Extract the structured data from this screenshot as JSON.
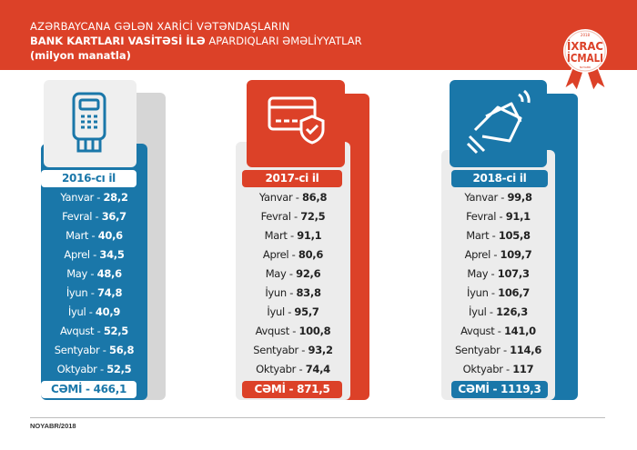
{
  "header": {
    "line1": "AZƏRBAYCANA GƏLƏN XARİCİ VƏTƏNDAŞLARIN",
    "line2_bold": "BANK KARTLARI VASİTƏSİ İLƏ",
    "line2_rest": " APARDIQLARI ƏMƏLİYYATLAR",
    "line3": "(milyon manatla)"
  },
  "badge": {
    "year": "2018",
    "line1": "İXRAC",
    "line2": "İCMALI",
    "sub": "NOYABR"
  },
  "colors": {
    "red": "#dc4128",
    "blue": "#1a77a9",
    "gray": "#ececec"
  },
  "chart_data": {
    "type": "table",
    "categories": [
      "Yanvar",
      "Fevral",
      "Mart",
      "Aprel",
      "May",
      "İyun",
      "İyul",
      "Avqust",
      "Sentyabr",
      "Oktyabr"
    ],
    "series": [
      {
        "name": "2016-cı il",
        "icon": "pos-terminal-icon",
        "values": [
          "28,2",
          "36,7",
          "40,6",
          "34,5",
          "48,6",
          "74,8",
          "40,9",
          "52,5",
          "56,8",
          "52,5"
        ],
        "total_label": "CƏMİ - 466,1"
      },
      {
        "name": "2017-ci il",
        "icon": "card-shield-icon",
        "values": [
          "86,8",
          "72,5",
          "91,1",
          "80,6",
          "92,6",
          "83,8",
          "95,7",
          "100,8",
          "93,2",
          "74,4"
        ],
        "total_label": "CƏMİ - 871,5"
      },
      {
        "name": "2018-ci il",
        "icon": "contactless-card-hand-icon",
        "values": [
          "99,8",
          "91,1",
          "105,8",
          "109,7",
          "107,3",
          "106,7",
          "126,3",
          "141,0",
          "114,6",
          "117"
        ],
        "total_label": "CƏMİ - 1119,3"
      }
    ]
  },
  "footer": {
    "date": "NOYABR/2018"
  }
}
